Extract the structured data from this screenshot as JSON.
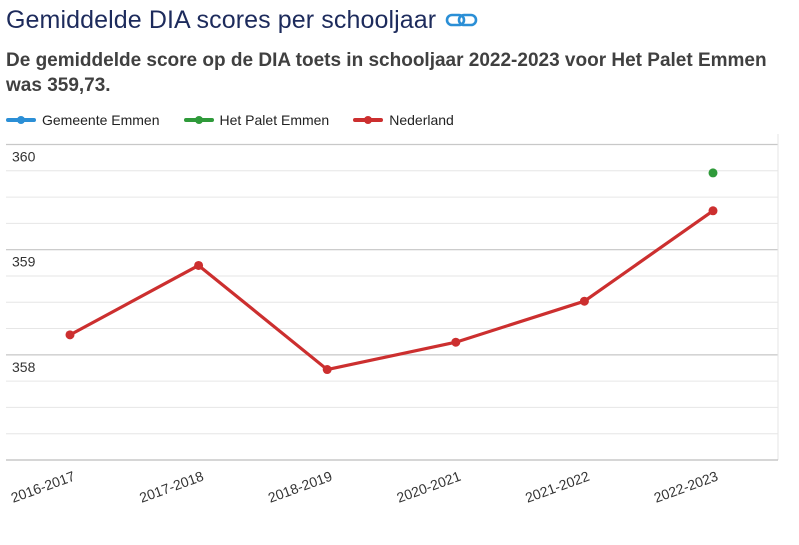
{
  "header": {
    "title": "Gemiddelde DIA scores per schooljaar",
    "link_icon": "link-icon",
    "subtitle": "De gemiddelde score op de DIA toets in schooljaar 2022-2023 voor Het Palet Emmen was 359,73."
  },
  "colors": {
    "gemeente": "#2b8fd6",
    "palet": "#2f9a3a",
    "nederland": "#cc2f2f",
    "accent": "#1d2b5c"
  },
  "chart_data": {
    "type": "line",
    "title": "Gemiddelde DIA scores per schooljaar",
    "subtitle": "De gemiddelde score op de DIA toets in schooljaar 2022-2023 voor Het Palet Emmen was 359,73.",
    "categories": [
      "2016-2017",
      "2017-2018",
      "2018-2019",
      "2020-2021",
      "2021-2022",
      "2022-2023"
    ],
    "y_tick_labels": [
      "360",
      "359",
      "358"
    ],
    "y_ticks": [
      360,
      359,
      358
    ],
    "ylim": [
      357.0,
      360.1
    ],
    "grid": true,
    "legend_position": "top-left",
    "series": [
      {
        "name": "Gemeente Emmen",
        "values": [
          null,
          null,
          null,
          null,
          null,
          null
        ]
      },
      {
        "name": "Het Palet Emmen",
        "values": [
          null,
          null,
          null,
          null,
          null,
          359.73
        ]
      },
      {
        "name": "Nederland",
        "values": [
          358.19,
          358.85,
          357.86,
          358.12,
          358.51,
          359.37
        ]
      }
    ]
  }
}
